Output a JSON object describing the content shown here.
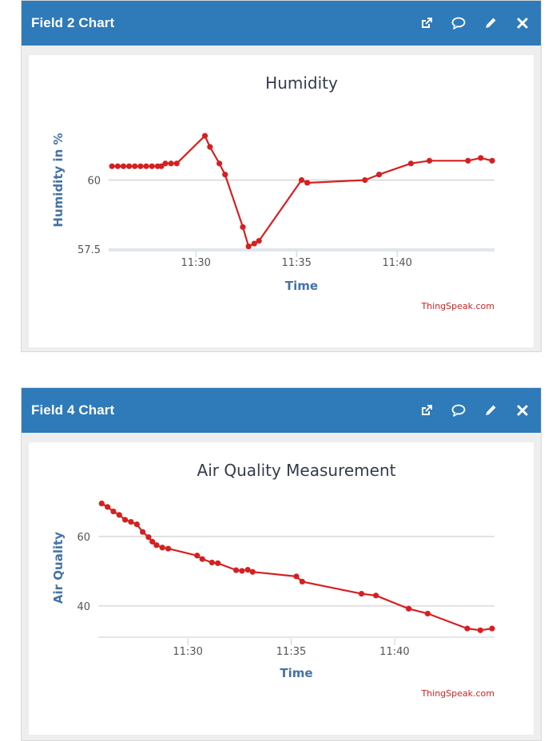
{
  "panels": [
    {
      "title": "Field 2 Chart",
      "icons": [
        "external-link-icon",
        "comment-icon",
        "pencil-icon",
        "close-icon"
      ]
    },
    {
      "title": "Field 4 Chart",
      "icons": [
        "external-link-icon",
        "comment-icon",
        "pencil-icon",
        "close-icon"
      ]
    }
  ],
  "chart_data": [
    {
      "type": "line",
      "title": "Humidity",
      "xlabel": "Time",
      "ylabel": "Humidity in %",
      "credit": "ThingSpeak.com",
      "color": "#d62020",
      "xlim": [
        "11:25:40",
        "11:44:50"
      ],
      "ylim": [
        57.5,
        62.5
      ],
      "yticks": [
        {
          "value": 57.5,
          "label": "57.5"
        },
        {
          "value": 60,
          "label": "60"
        }
      ],
      "xticks": [
        {
          "value": "11:30:00",
          "label": "11:30"
        },
        {
          "value": "11:35:00",
          "label": "11:35"
        },
        {
          "value": "11:40:00",
          "label": "11:40"
        }
      ],
      "series": [
        {
          "x": [
            "11:25:50",
            "11:26:07",
            "11:26:24",
            "11:26:41",
            "11:26:58",
            "11:27:15",
            "11:27:32",
            "11:27:49",
            "11:28:06",
            "11:28:17",
            "11:28:29",
            "11:28:46",
            "11:29:03",
            "11:30:27",
            "11:30:42",
            "11:31:10",
            "11:31:27",
            "11:32:20",
            "11:32:37",
            "11:32:54",
            "11:33:08",
            "11:35:15",
            "11:35:32",
            "11:38:24",
            "11:39:06",
            "11:40:41",
            "11:41:36",
            "11:43:31",
            "11:44:09",
            "11:44:43"
          ],
          "y": [
            60.5,
            60.5,
            60.5,
            60.5,
            60.5,
            60.5,
            60.5,
            60.5,
            60.5,
            60.5,
            60.6,
            60.6,
            60.6,
            61.6,
            61.2,
            60.6,
            60.2,
            58.3,
            57.6,
            57.7,
            57.8,
            60.0,
            59.9,
            60.0,
            60.2,
            60.6,
            60.7,
            60.7,
            60.8,
            60.7
          ]
        }
      ]
    },
    {
      "type": "line",
      "title": "Air Quality Measurement",
      "xlabel": "Time",
      "ylabel": "Air Quality",
      "credit": "ThingSpeak.com",
      "color": "#d62020",
      "xlim": [
        "11:25:40",
        "11:44:50"
      ],
      "ylim": [
        31,
        71
      ],
      "yticks": [
        {
          "value": 40,
          "label": "40"
        },
        {
          "value": 60,
          "label": "60"
        }
      ],
      "xticks": [
        {
          "value": "11:30:00",
          "label": "11:30"
        },
        {
          "value": "11:35:00",
          "label": "11:35"
        },
        {
          "value": "11:40:00",
          "label": "11:40"
        }
      ],
      "series": [
        {
          "x": [
            "11:25:50",
            "11:26:07",
            "11:26:24",
            "11:26:41",
            "11:26:58",
            "11:27:15",
            "11:27:32",
            "11:27:49",
            "11:28:06",
            "11:28:17",
            "11:28:29",
            "11:28:46",
            "11:29:03",
            "11:30:27",
            "11:30:42",
            "11:31:10",
            "11:31:27",
            "11:32:20",
            "11:32:37",
            "11:32:54",
            "11:33:08",
            "11:35:15",
            "11:35:32",
            "11:38:24",
            "11:39:06",
            "11:40:41",
            "11:41:36",
            "11:43:31",
            "11:44:09",
            "11:44:43"
          ],
          "y": [
            69.5,
            68.5,
            67.2,
            66.2,
            64.8,
            64.2,
            63.5,
            61.3,
            59.8,
            58.5,
            57.5,
            56.8,
            56.5,
            54.5,
            53.5,
            52.5,
            52.3,
            50.3,
            50.1,
            50.4,
            49.8,
            48.5,
            47.0,
            43.5,
            43.0,
            39.2,
            37.8,
            33.5,
            33.0,
            33.5
          ]
        }
      ]
    }
  ]
}
